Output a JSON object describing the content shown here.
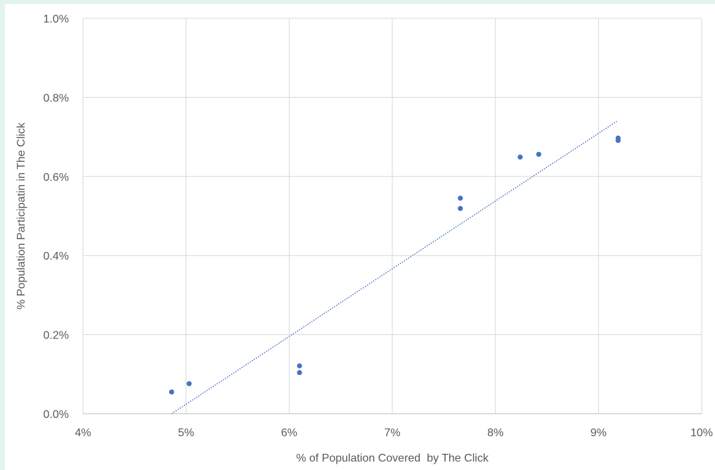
{
  "chart_data": {
    "type": "scatter",
    "title": "",
    "xlabel": "% of Population Covered  by The Click",
    "ylabel": "% Population Participatin in The Click",
    "xlim": [
      0.04,
      0.1
    ],
    "ylim": [
      0.0,
      0.01
    ],
    "x_ticks": [
      0.04,
      0.05,
      0.06,
      0.07,
      0.08,
      0.09,
      0.1
    ],
    "x_tick_labels": [
      "4%",
      "5%",
      "6%",
      "7%",
      "8%",
      "9%",
      "10%"
    ],
    "y_ticks": [
      0.0,
      0.002,
      0.004,
      0.006,
      0.008,
      0.01
    ],
    "y_tick_labels": [
      "0.0%",
      "0.2%",
      "0.4%",
      "0.6%",
      "0.8%",
      "1.0%"
    ],
    "grid": true,
    "legend": "none",
    "series": [
      {
        "points": [
          {
            "x": 0.0486,
            "y": 0.00055
          },
          {
            "x": 0.0503,
            "y": 0.00076
          },
          {
            "x": 0.061,
            "y": 0.00121
          },
          {
            "x": 0.061,
            "y": 0.00104
          },
          {
            "x": 0.0766,
            "y": 0.00545
          },
          {
            "x": 0.0766,
            "y": 0.00519
          },
          {
            "x": 0.0824,
            "y": 0.00649
          },
          {
            "x": 0.0842,
            "y": 0.00656
          },
          {
            "x": 0.0919,
            "y": 0.00697
          },
          {
            "x": 0.0919,
            "y": 0.00691
          }
        ],
        "color": "#4472c4"
      }
    ],
    "trendline": {
      "type": "linear",
      "style": "dotted",
      "color": "#4472c4",
      "from": {
        "x": 0.0486,
        "y": 0.0
      },
      "to": {
        "x": 0.0918,
        "y": 0.0074
      }
    }
  }
}
